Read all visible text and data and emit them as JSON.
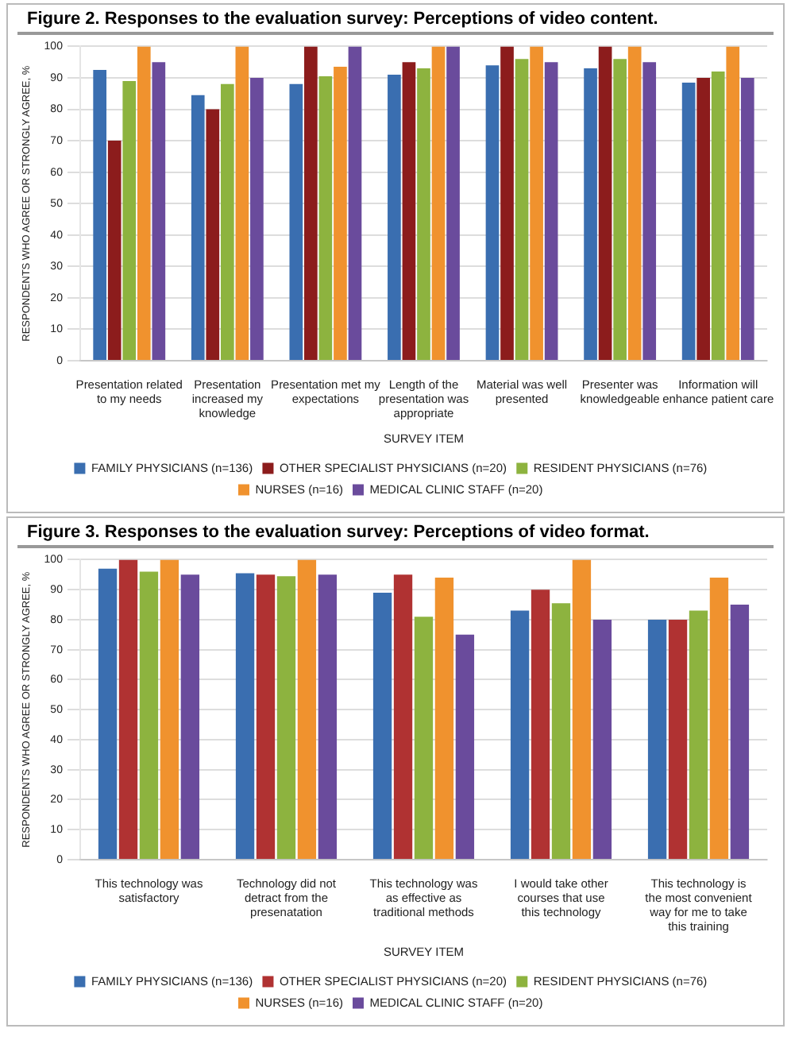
{
  "chart_data": [
    {
      "type": "bar",
      "title": "Figure 2. Responses to the evaluation survey: Perceptions of video content.",
      "xlabel": "SURVEY ITEM",
      "ylabel": "RESPONDENTS WHO AGREE OR STRONGLY AGREE, %",
      "categories": [
        "Presentation related to my needs",
        "Presentation increased my knowledge",
        "Presentation met my expectations",
        "Length of the presentation was appropriate",
        "Material was well presented",
        "Presenter was knowledgeable",
        "Information will enhance patient care"
      ],
      "series": [
        {
          "name": "FAMILY PHYSICIANS (n=136)",
          "color": "#3a6eb0",
          "values": [
            92.5,
            84.5,
            88,
            91,
            94,
            93,
            88.5
          ]
        },
        {
          "name": "OTHER SPECIALIST PHYSICIANS (n=20)",
          "color": "#8c1c1c",
          "values": [
            70,
            80,
            100,
            95,
            100,
            100,
            90
          ]
        },
        {
          "name": "RESIDENT PHYSICIANS (n=76)",
          "color": "#8db33f",
          "values": [
            89,
            88,
            90.5,
            93,
            96,
            96,
            92
          ]
        },
        {
          "name": "NURSES (n=16)",
          "color": "#f0922e",
          "values": [
            100,
            100,
            93.5,
            100,
            100,
            100,
            100
          ]
        },
        {
          "name": "MEDICAL CLINIC STAFF (n=20)",
          "color": "#6a4b9c",
          "values": [
            95,
            90,
            100,
            100,
            95,
            95,
            90
          ]
        }
      ],
      "ylim": [
        0,
        100
      ],
      "yticks": [
        0,
        10,
        20,
        30,
        40,
        50,
        60,
        70,
        80,
        90,
        100
      ],
      "grid": "y",
      "legend": "bottom"
    },
    {
      "type": "bar",
      "title": "Figure 3. Responses to the evaluation survey: Perceptions of video format.",
      "xlabel": "SURVEY ITEM",
      "ylabel": "RESPONDENTS WHO AGREE OR STRONGLY AGREE, %",
      "categories": [
        "This technology was satisfactory",
        "Technology did not detract from the presenatation",
        "This technology was as effective as traditional methods",
        "I would take other courses that use this technology",
        "This technology is the most convenient way for me to take this training"
      ],
      "series": [
        {
          "name": "FAMILY PHYSICIANS (n=136)",
          "color": "#3a6eb0",
          "values": [
            97,
            95.5,
            89,
            83,
            80
          ]
        },
        {
          "name": "OTHER SPECIALIST PHYSICIANS (n=20)",
          "color": "#b03232",
          "values": [
            100,
            95,
            95,
            90,
            80
          ]
        },
        {
          "name": "RESIDENT PHYSICIANS (n=76)",
          "color": "#8db33f",
          "values": [
            96,
            94.5,
            81,
            85.5,
            83
          ]
        },
        {
          "name": "NURSES (n=16)",
          "color": "#f0922e",
          "values": [
            100,
            100,
            94,
            100,
            94
          ]
        },
        {
          "name": "MEDICAL CLINIC STAFF (n=20)",
          "color": "#6a4b9c",
          "values": [
            95,
            95,
            75,
            80,
            85
          ]
        }
      ],
      "ylim": [
        0,
        100
      ],
      "yticks": [
        0,
        10,
        20,
        30,
        40,
        50,
        60,
        70,
        80,
        90,
        100
      ],
      "grid": "y",
      "legend": "bottom"
    }
  ]
}
